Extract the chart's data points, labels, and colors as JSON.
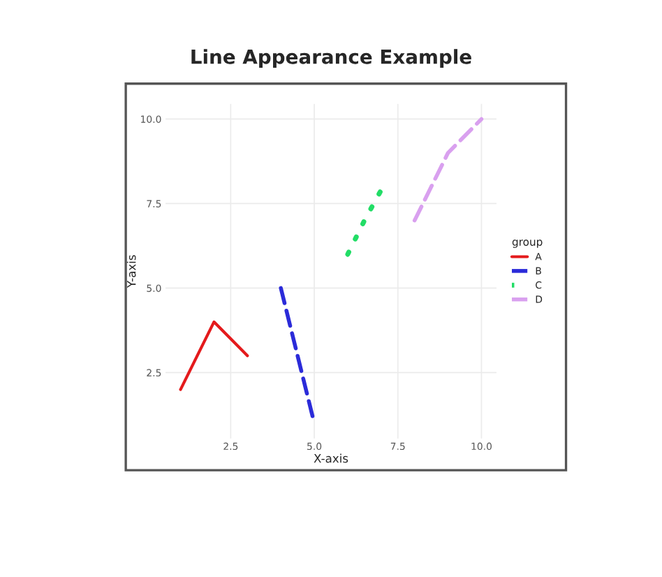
{
  "chart_data": {
    "type": "line",
    "title": "Line Appearance Example",
    "xlabel": "X-axis",
    "ylabel": "Y-axis",
    "legend_title": "group",
    "legend": "right",
    "grid": true,
    "xlim": [
      0.55,
      10.45
    ],
    "ylim": [
      0.55,
      10.45
    ],
    "xticks": [
      {
        "value": 2.5,
        "label": "2.5"
      },
      {
        "value": 5,
        "label": "5.0"
      },
      {
        "value": 7.5,
        "label": "7.5"
      },
      {
        "value": 10,
        "label": "10.0"
      }
    ],
    "yticks": [
      {
        "value": 2.5,
        "label": "2.5"
      },
      {
        "value": 5,
        "label": "5.0"
      },
      {
        "value": 7.5,
        "label": "7.5"
      },
      {
        "value": 10,
        "label": "10.0"
      }
    ],
    "series": [
      {
        "name": "A",
        "color": "#e41a1c",
        "line_style": "solid",
        "x": [
          1,
          2,
          3
        ],
        "values": [
          2,
          4,
          3
        ]
      },
      {
        "name": "B",
        "color": "#2b2bd9",
        "line_style": "dashed",
        "x": [
          4,
          5
        ],
        "values": [
          5,
          1
        ]
      },
      {
        "name": "C",
        "color": "#22dd66",
        "line_style": "dotted",
        "x": [
          6,
          6.5,
          7
        ],
        "values": [
          6,
          7,
          7.9
        ]
      },
      {
        "name": "D",
        "color": "#d9a0ef",
        "line_style": "dashed",
        "x": [
          8,
          9,
          10
        ],
        "values": [
          7,
          9,
          10
        ]
      }
    ]
  }
}
